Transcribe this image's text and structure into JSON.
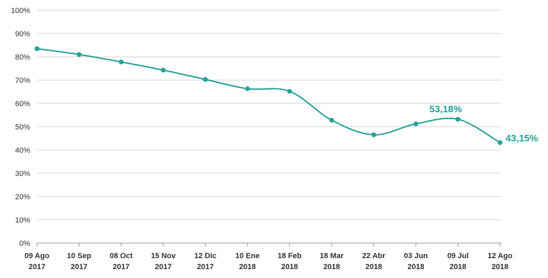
{
  "chart_data": {
    "type": "line",
    "categories": [
      [
        "09 Ago",
        "2017"
      ],
      [
        "10 Sep",
        "2017"
      ],
      [
        "08 Oct",
        "2017"
      ],
      [
        "15 Nov",
        "2017"
      ],
      [
        "12 Dic",
        "2017"
      ],
      [
        "10 Ene",
        "2018"
      ],
      [
        "18 Feb",
        "2018"
      ],
      [
        "18 Mar",
        "2018"
      ],
      [
        "22 Abr",
        "2018"
      ],
      [
        "03 Jun",
        "2018"
      ],
      [
        "09 Jul",
        "2018"
      ],
      [
        "12 Ago",
        "2018"
      ]
    ],
    "series": [
      {
        "values": [
          83.5,
          81.0,
          77.8,
          74.3,
          70.3,
          66.3,
          65.2,
          52.8,
          46.5,
          51.2,
          53.18,
          43.15
        ]
      }
    ],
    "yticks": [
      "0%",
      "10%",
      "20%",
      "30%",
      "40%",
      "50%",
      "60%",
      "70%",
      "80%",
      "90%",
      "100%"
    ],
    "ylim": [
      0,
      100
    ],
    "grid": true,
    "legend": "none",
    "color": "#26a39a",
    "annotations": [
      {
        "index": 10,
        "text": "53,18%"
      },
      {
        "index": 11,
        "text": "43,15%"
      }
    ]
  }
}
